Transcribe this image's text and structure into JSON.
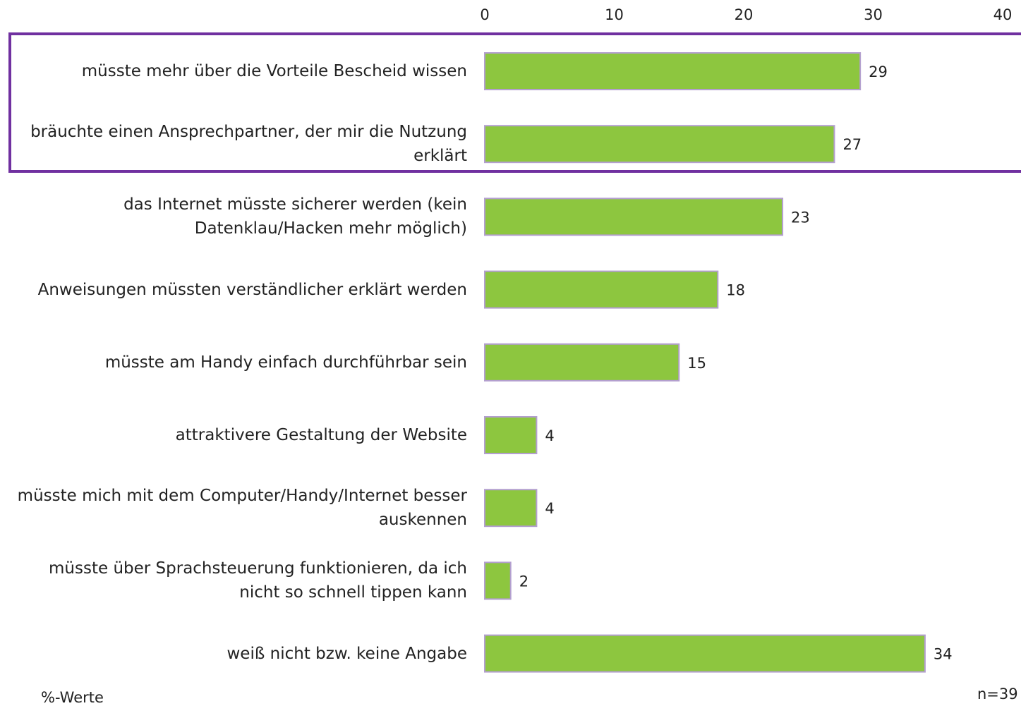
{
  "chart_data": {
    "type": "bar",
    "orientation": "horizontal",
    "categories": [
      "müsste mehr über die Vorteile Bescheid wissen",
      "bräuchte einen Ansprechpartner, der mir die Nutzung erklärt",
      "das Internet müsste sicherer werden (kein Datenklau/Hacken mehr möglich)",
      "Anweisungen müssten verständlicher erklärt werden",
      "müsste am Handy einfach durchführbar sein",
      "attraktivere Gestaltung der Website",
      "müsste mich mit dem Computer/Handy/Internet besser auskennen",
      "müsste über Sprachsteuerung funktionieren, da ich nicht so schnell tippen kann",
      "weiß nicht bzw. keine Angabe"
    ],
    "values": [
      29,
      27,
      23,
      18,
      15,
      4,
      4,
      2,
      34
    ],
    "color": "#8dc63f",
    "xlim": [
      0,
      40
    ],
    "xticks": [
      0,
      10,
      20,
      30,
      40
    ],
    "annotations": [
      "%-Werte",
      "n=39"
    ]
  }
}
